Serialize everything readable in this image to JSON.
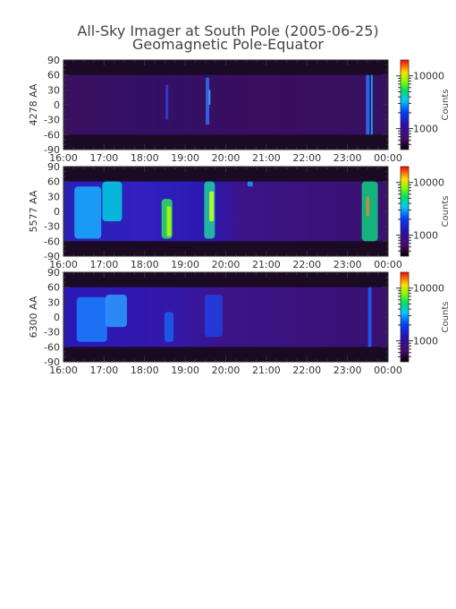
{
  "title_line1": "All-Sky Imager at South Pole (2005-06-25)",
  "title_line2": "Geomagnetic Pole-Equator",
  "chart_data": [
    {
      "type": "heatmap",
      "ylabel": "4278 AA",
      "x_ticks": [
        "16:00",
        "17:00",
        "18:00",
        "19:00",
        "20:00",
        "21:00",
        "22:00",
        "23:00",
        "00:00"
      ],
      "y_ticks": [
        90,
        60,
        30,
        0,
        -30,
        -60,
        -90
      ],
      "xlim": [
        "16:00",
        "00:00"
      ],
      "ylim": [
        -90,
        90
      ],
      "colorbar_label": "Counts",
      "colorbar_ticks": [
        1000,
        10000
      ],
      "colorbar_tick_labels": [
        "1000",
        "10000"
      ],
      "colorscale": "log, rainbow (black-purple-blue-cyan-green-yellow-red)"
    },
    {
      "type": "heatmap",
      "ylabel": "5577 AA",
      "x_ticks": [
        "16:00",
        "17:00",
        "18:00",
        "19:00",
        "20:00",
        "21:00",
        "22:00",
        "23:00",
        "00:00"
      ],
      "y_ticks": [
        90,
        60,
        30,
        0,
        -30,
        -60,
        -90
      ],
      "xlim": [
        "16:00",
        "00:00"
      ],
      "ylim": [
        -90,
        90
      ],
      "colorbar_label": "Counts",
      "colorbar_ticks": [
        1000,
        10000
      ],
      "colorbar_tick_labels": [
        "1000",
        "10000"
      ],
      "colorscale": "log, rainbow (black-purple-blue-cyan-green-yellow-red)"
    },
    {
      "type": "heatmap",
      "ylabel": "6300 AA",
      "x_ticks": [
        "16:00",
        "17:00",
        "18:00",
        "19:00",
        "20:00",
        "21:00",
        "22:00",
        "23:00",
        "00:00"
      ],
      "y_ticks": [
        90,
        60,
        30,
        0,
        -30,
        -60,
        -90
      ],
      "xlim": [
        "16:00",
        "00:00"
      ],
      "ylim": [
        -90,
        90
      ],
      "colorbar_label": "Counts",
      "colorbar_ticks": [
        1000,
        10000
      ],
      "colorbar_tick_labels": [
        "1000",
        "10000"
      ],
      "colorscale": "log, rainbow (black-purple-blue-cyan-green-yellow-red)"
    }
  ]
}
